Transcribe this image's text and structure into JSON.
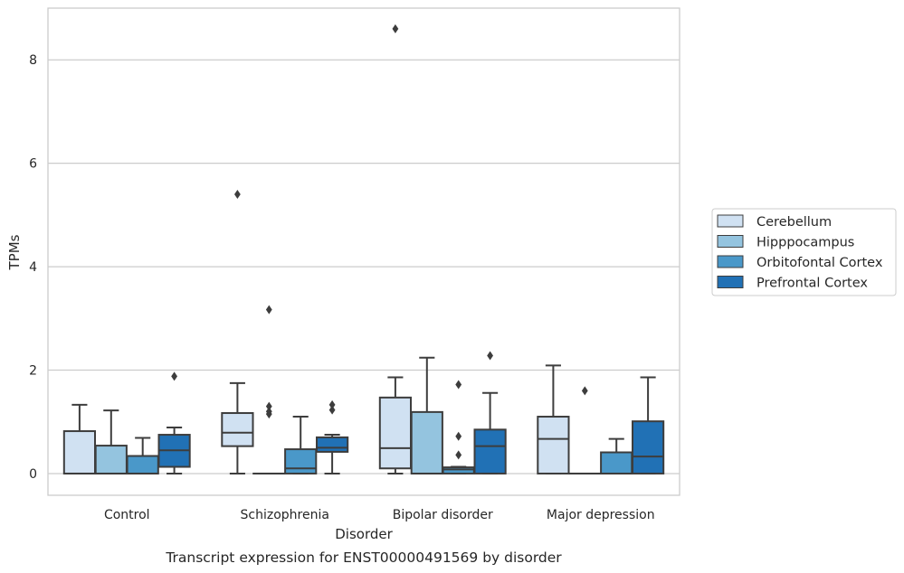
{
  "chart_data": {
    "type": "box",
    "title": "Transcript expression for ENST00000491569 by disorder",
    "xlabel": "Disorder",
    "ylabel": "TPMs",
    "ylim": [
      -0.42,
      9.0
    ],
    "yticks": [
      0,
      2,
      4,
      6,
      8
    ],
    "grid": "horizontal",
    "legend_placement": "right",
    "categories": [
      "Control",
      "Schizophrenia",
      "Bipolar disorder",
      "Major depression"
    ],
    "series": [
      {
        "name": "Cerebellum",
        "color": "#d0e1f2",
        "boxes": [
          {
            "whislo": 0.0,
            "q1": 0.0,
            "med": 0.0,
            "q3": 0.82,
            "whishi": 1.33,
            "fliers": []
          },
          {
            "whislo": 0.0,
            "q1": 0.53,
            "med": 0.79,
            "q3": 1.17,
            "whishi": 1.75,
            "fliers": [
              5.4
            ]
          },
          {
            "whislo": 0.0,
            "q1": 0.1,
            "med": 0.49,
            "q3": 1.47,
            "whishi": 1.86,
            "fliers": [
              8.6
            ]
          },
          {
            "whislo": 0.0,
            "q1": 0.0,
            "med": 0.67,
            "q3": 1.1,
            "whishi": 2.09,
            "fliers": []
          }
        ]
      },
      {
        "name": "Hipppocampus",
        "color": "#94c4df",
        "boxes": [
          {
            "whislo": 0.0,
            "q1": 0.0,
            "med": 0.0,
            "q3": 0.54,
            "whishi": 1.22,
            "fliers": []
          },
          {
            "whislo": 0.0,
            "q1": 0.0,
            "med": 0.0,
            "q3": 0.0,
            "whishi": 0.0,
            "fliers": [
              1.15,
              1.2,
              1.3,
              3.17
            ]
          },
          {
            "whislo": 0.0,
            "q1": 0.0,
            "med": 0.0,
            "q3": 1.19,
            "whishi": 2.24,
            "fliers": []
          },
          {
            "whislo": 0.0,
            "q1": 0.0,
            "med": 0.0,
            "q3": 0.0,
            "whishi": 0.0,
            "fliers": [
              1.6
            ]
          }
        ]
      },
      {
        "name": "Orbitofontal Cortex",
        "color": "#4a98c9",
        "boxes": [
          {
            "whislo": 0.0,
            "q1": 0.0,
            "med": 0.0,
            "q3": 0.34,
            "whishi": 0.69,
            "fliers": []
          },
          {
            "whislo": 0.0,
            "q1": 0.0,
            "med": 0.1,
            "q3": 0.47,
            "whishi": 1.1,
            "fliers": []
          },
          {
            "whislo": 0.0,
            "q1": 0.0,
            "med": 0.08,
            "q3": 0.12,
            "whishi": 0.13,
            "fliers": [
              0.36,
              0.72,
              1.72
            ]
          },
          {
            "whislo": 0.0,
            "q1": 0.0,
            "med": 0.0,
            "q3": 0.41,
            "whishi": 0.67,
            "fliers": []
          }
        ]
      },
      {
        "name": "Prefrontal Cortex",
        "color": "#2171b5",
        "boxes": [
          {
            "whislo": 0.0,
            "q1": 0.13,
            "med": 0.45,
            "q3": 0.75,
            "whishi": 0.89,
            "fliers": [
              1.88
            ]
          },
          {
            "whislo": 0.0,
            "q1": 0.42,
            "med": 0.5,
            "q3": 0.7,
            "whishi": 0.75,
            "fliers": [
              1.23,
              1.33
            ]
          },
          {
            "whislo": 0.0,
            "q1": 0.0,
            "med": 0.53,
            "q3": 0.85,
            "whishi": 1.56,
            "fliers": [
              2.28
            ]
          },
          {
            "whislo": 0.0,
            "q1": 0.0,
            "med": 0.33,
            "q3": 1.01,
            "whishi": 1.86,
            "fliers": []
          }
        ]
      }
    ]
  }
}
